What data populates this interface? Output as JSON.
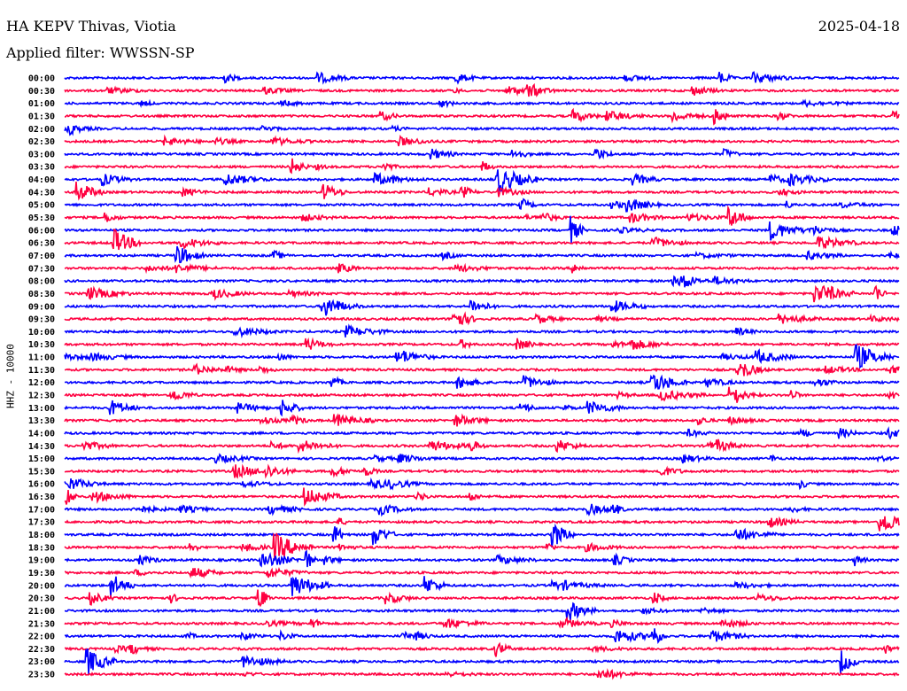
{
  "header": {
    "station": "HA KEPV Thivas, Viotia",
    "filter": "Applied filter: WWSSN-SP",
    "date": "2025-04-18"
  },
  "chart_data": {
    "type": "line",
    "title": "HA KEPV Thivas, Viotia",
    "subtitle": "Applied filter: WWSSN-SP",
    "ylabel": "HHZ - 10000",
    "xlabel": "",
    "row_labels": [
      "00:00",
      "00:30",
      "01:00",
      "01:30",
      "02:00",
      "02:30",
      "03:00",
      "03:30",
      "04:00",
      "04:30",
      "05:00",
      "05:30",
      "06:00",
      "06:30",
      "07:00",
      "07:30",
      "08:00",
      "08:30",
      "09:00",
      "09:30",
      "10:00",
      "10:30",
      "11:00",
      "11:30",
      "12:00",
      "12:30",
      "13:00",
      "13:30",
      "14:00",
      "14:30",
      "15:00",
      "15:30",
      "16:00",
      "16:30",
      "17:00",
      "17:30",
      "18:00",
      "18:30",
      "19:00",
      "19:30",
      "20:00",
      "20:30",
      "21:00",
      "21:30",
      "22:00",
      "22:30",
      "23:00",
      "23:30"
    ],
    "series_colors": [
      "#0000ff",
      "#ff0040"
    ],
    "legend": "none",
    "grid": false
  }
}
